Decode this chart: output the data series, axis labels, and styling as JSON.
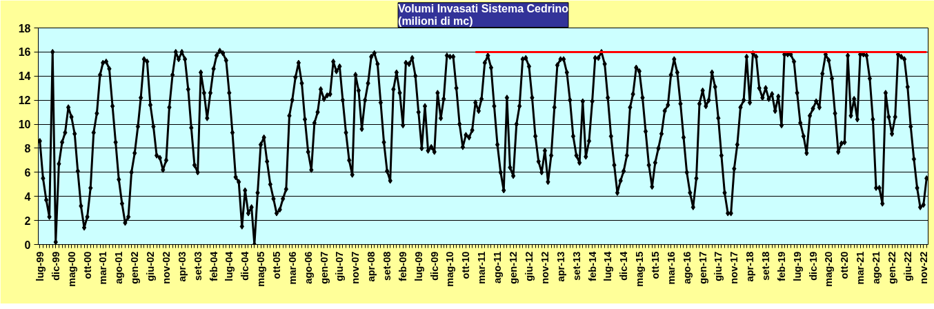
{
  "chart_data": {
    "type": "line",
    "title": "Volumi Invasati Sistema Cedrino\n(milioni  di mc)",
    "xlim": [
      "1999-06-16",
      "2022-12-16"
    ],
    "ylim": [
      0,
      18
    ],
    "yticks": [
      0,
      2,
      4,
      6,
      8,
      10,
      12,
      14,
      16,
      18
    ],
    "xticks": [
      {
        "value": "1999-07",
        "label": "lug-99"
      },
      {
        "value": "1999-12",
        "label": "dic-99"
      },
      {
        "value": "2000-05",
        "label": "mag-00"
      },
      {
        "value": "2000-10",
        "label": "ott-00"
      },
      {
        "value": "2001-03",
        "label": "mar-01"
      },
      {
        "value": "2001-08",
        "label": "ago-01"
      },
      {
        "value": "2002-01",
        "label": "gen-02"
      },
      {
        "value": "2002-06",
        "label": "giu-02"
      },
      {
        "value": "2002-11",
        "label": "nov-02"
      },
      {
        "value": "2003-04",
        "label": "apr-03"
      },
      {
        "value": "2003-09",
        "label": "set-03"
      },
      {
        "value": "2004-02",
        "label": "feb-04"
      },
      {
        "value": "2004-07",
        "label": "lug-04"
      },
      {
        "value": "2004-12",
        "label": "dic-04"
      },
      {
        "value": "2005-05",
        "label": "mag-05"
      },
      {
        "value": "2005-10",
        "label": "ott-05"
      },
      {
        "value": "2006-03",
        "label": "mar-06"
      },
      {
        "value": "2006-08",
        "label": "ago-06"
      },
      {
        "value": "2007-01",
        "label": "gen-07"
      },
      {
        "value": "2007-06",
        "label": "giu-07"
      },
      {
        "value": "2007-11",
        "label": "nov-07"
      },
      {
        "value": "2008-04",
        "label": "apr-08"
      },
      {
        "value": "2008-09",
        "label": "set-08"
      },
      {
        "value": "2009-02",
        "label": "feb-09"
      },
      {
        "value": "2009-07",
        "label": "lug-09"
      },
      {
        "value": "2009-12",
        "label": "dic-09"
      },
      {
        "value": "2010-05",
        "label": "mag-10"
      },
      {
        "value": "2010-10",
        "label": "ott-10"
      },
      {
        "value": "2011-03",
        "label": "mar-11"
      },
      {
        "value": "2011-08",
        "label": "ago-11"
      },
      {
        "value": "2012-01",
        "label": "gen-12"
      },
      {
        "value": "2012-06",
        "label": "giu-12"
      },
      {
        "value": "2012-11",
        "label": "nov-12"
      },
      {
        "value": "2013-04",
        "label": "apr-13"
      },
      {
        "value": "2013-09",
        "label": "set-13"
      },
      {
        "value": "2014-02",
        "label": "feb-14"
      },
      {
        "value": "2014-07",
        "label": "lug-14"
      },
      {
        "value": "2014-12",
        "label": "dic-14"
      },
      {
        "value": "2015-05",
        "label": "mag-15"
      },
      {
        "value": "2015-10",
        "label": "ott-15"
      },
      {
        "value": "2016-03",
        "label": "mar-16"
      },
      {
        "value": "2016-08",
        "label": "ago-16"
      },
      {
        "value": "2017-01",
        "label": "gen-17"
      },
      {
        "value": "2017-06",
        "label": "giu-17"
      },
      {
        "value": "2017-11",
        "label": "nov-17"
      },
      {
        "value": "2018-04",
        "label": "apr-18"
      },
      {
        "value": "2018-09",
        "label": "set-18"
      },
      {
        "value": "2019-02",
        "label": "feb-19"
      },
      {
        "value": "2019-07",
        "label": "lug-19"
      },
      {
        "value": "2019-12",
        "label": "dic-19"
      },
      {
        "value": "2020-05",
        "label": "mag-20"
      },
      {
        "value": "2020-10",
        "label": "ott-20"
      },
      {
        "value": "2021-03",
        "label": "mar-21"
      },
      {
        "value": "2021-08",
        "label": "ago-21"
      },
      {
        "value": "2022-01",
        "label": "gen-22"
      },
      {
        "value": "2022-06",
        "label": "giu-22"
      },
      {
        "value": "2022-11",
        "label": "nov-22"
      }
    ],
    "grid": "y",
    "marker": "diamond",
    "line_style": "solid",
    "series": [
      {
        "color": "#000000",
        "x": [
          "1999-07",
          "1999-08",
          "1999-09",
          "1999-10",
          "1999-11",
          "1999-12",
          "2000-01",
          "2000-02",
          "2000-03",
          "2000-04",
          "2000-05",
          "2000-06",
          "2000-07",
          "2000-08",
          "2000-09",
          "2000-10",
          "2000-11",
          "2000-12",
          "2001-01",
          "2001-02",
          "2001-03",
          "2001-04",
          "2001-05",
          "2001-06",
          "2001-07",
          "2001-08",
          "2001-09",
          "2001-10",
          "2001-11",
          "2001-12",
          "2002-01",
          "2002-02",
          "2002-03",
          "2002-04",
          "2002-05",
          "2002-06",
          "2002-07",
          "2002-08",
          "2002-09",
          "2002-10",
          "2002-11",
          "2002-12",
          "2003-01",
          "2003-02",
          "2003-03",
          "2003-04",
          "2003-05",
          "2003-06",
          "2003-07",
          "2003-08",
          "2003-09",
          "2003-10",
          "2003-11",
          "2003-12",
          "2004-01",
          "2004-02",
          "2004-03",
          "2004-04",
          "2004-05",
          "2004-06",
          "2004-07",
          "2004-08",
          "2004-09",
          "2004-10",
          "2004-11",
          "2004-12",
          "2005-01",
          "2005-02",
          "2005-03",
          "2005-04",
          "2005-05",
          "2005-06",
          "2005-07",
          "2005-08",
          "2005-09",
          "2005-10",
          "2005-11",
          "2005-12",
          "2006-01",
          "2006-02",
          "2006-03",
          "2006-04",
          "2006-05",
          "2006-06",
          "2006-07",
          "2006-08",
          "2006-09",
          "2006-10",
          "2006-11",
          "2006-12",
          "2007-01",
          "2007-02",
          "2007-03",
          "2007-04",
          "2007-05",
          "2007-06",
          "2007-07",
          "2007-08",
          "2007-09",
          "2007-10",
          "2007-11",
          "2007-12",
          "2008-01",
          "2008-02",
          "2008-03",
          "2008-04",
          "2008-05",
          "2008-06",
          "2008-07",
          "2008-08",
          "2008-09",
          "2008-10",
          "2008-11",
          "2008-12",
          "2009-01",
          "2009-02",
          "2009-03",
          "2009-04",
          "2009-05",
          "2009-06",
          "2009-07",
          "2009-08",
          "2009-09",
          "2009-10",
          "2009-11",
          "2009-12",
          "2010-01",
          "2010-02",
          "2010-03",
          "2010-04",
          "2010-05",
          "2010-06",
          "2010-07",
          "2010-08",
          "2010-09",
          "2010-10",
          "2010-11",
          "2010-12",
          "2011-01",
          "2011-02",
          "2011-03",
          "2011-04",
          "2011-05",
          "2011-06",
          "2011-07",
          "2011-08",
          "2011-09",
          "2011-10",
          "2011-11",
          "2011-12",
          "2012-01",
          "2012-02",
          "2012-03",
          "2012-04",
          "2012-05",
          "2012-06",
          "2012-07",
          "2012-08",
          "2012-09",
          "2012-10",
          "2012-11",
          "2012-12",
          "2013-01",
          "2013-02",
          "2013-03",
          "2013-04",
          "2013-05",
          "2013-06",
          "2013-07",
          "2013-08",
          "2013-09",
          "2013-10",
          "2013-11",
          "2013-12",
          "2014-01",
          "2014-02",
          "2014-03",
          "2014-04",
          "2014-05",
          "2014-06",
          "2014-07",
          "2014-08",
          "2014-09",
          "2014-10",
          "2014-11",
          "2014-12",
          "2015-01",
          "2015-02",
          "2015-03",
          "2015-04",
          "2015-05",
          "2015-06",
          "2015-07",
          "2015-08",
          "2015-09",
          "2015-10",
          "2015-11",
          "2015-12",
          "2016-01",
          "2016-02",
          "2016-03",
          "2016-04",
          "2016-05",
          "2016-06",
          "2016-07",
          "2016-08",
          "2016-09",
          "2016-10",
          "2016-11",
          "2016-12",
          "2017-01",
          "2017-02",
          "2017-03",
          "2017-04",
          "2017-05",
          "2017-06",
          "2017-07",
          "2017-08",
          "2017-09",
          "2017-10",
          "2017-11",
          "2017-12",
          "2018-01",
          "2018-02",
          "2018-03",
          "2018-04",
          "2018-05",
          "2018-06",
          "2018-07",
          "2018-08",
          "2018-09",
          "2018-10",
          "2018-11",
          "2018-12",
          "2019-01",
          "2019-02",
          "2019-03",
          "2019-04",
          "2019-05",
          "2019-06",
          "2019-07",
          "2019-08",
          "2019-09",
          "2019-10",
          "2019-11",
          "2019-12",
          "2020-01",
          "2020-02",
          "2020-03",
          "2020-04",
          "2020-05",
          "2020-06",
          "2020-07",
          "2020-08",
          "2020-09",
          "2020-10",
          "2020-11",
          "2020-12",
          "2021-01",
          "2021-02",
          "2021-03",
          "2021-04",
          "2021-05",
          "2021-06",
          "2021-07",
          "2021-08",
          "2021-09",
          "2021-10",
          "2021-11",
          "2021-12",
          "2022-01",
          "2022-02",
          "2022-03",
          "2022-04",
          "2022-05",
          "2022-06",
          "2022-07",
          "2022-08",
          "2022-09",
          "2022-10",
          "2022-11",
          "2022-12"
        ],
        "values": [
          8.6,
          5.5,
          3.7,
          2.3,
          16.0,
          0.2,
          6.7,
          8.5,
          9.3,
          11.4,
          10.6,
          9.2,
          6.1,
          3.2,
          1.4,
          2.3,
          4.7,
          9.3,
          10.9,
          14.1,
          15.1,
          15.2,
          14.6,
          11.5,
          8.5,
          5.4,
          3.4,
          1.8,
          2.3,
          6.0,
          7.6,
          9.8,
          12.2,
          15.4,
          15.2,
          11.6,
          9.8,
          7.4,
          7.2,
          6.2,
          7.0,
          11.4,
          14.1,
          16.0,
          15.4,
          16.0,
          15.4,
          12.9,
          9.7,
          6.6,
          6.0,
          14.3,
          12.6,
          10.5,
          12.6,
          14.6,
          15.7,
          16.1,
          15.9,
          15.3,
          12.6,
          9.3,
          5.6,
          5.2,
          1.5,
          4.5,
          2.6,
          3.1,
          0.0,
          4.3,
          8.3,
          8.9,
          6.9,
          5.0,
          3.8,
          2.6,
          2.9,
          3.8,
          4.6,
          10.7,
          12.0,
          13.9,
          15.1,
          13.4,
          10.4,
          7.7,
          6.2,
          10.1,
          11.0,
          12.9,
          12.1,
          12.4,
          12.5,
          15.2,
          14.4,
          14.8,
          12.0,
          9.3,
          7.0,
          5.8,
          14.1,
          12.8,
          9.6,
          12.0,
          13.4,
          15.6,
          15.9,
          15.0,
          11.8,
          8.5,
          6.1,
          5.3,
          12.9,
          14.3,
          12.6,
          9.9,
          15.1,
          15.0,
          15.5,
          14.0,
          11.0,
          8.0,
          11.5,
          7.8,
          8.1,
          7.7,
          12.6,
          10.5,
          12.1,
          15.7,
          15.6,
          15.6,
          13.0,
          10.0,
          8.1,
          9.1,
          8.9,
          9.5,
          11.8,
          11.1,
          12.1,
          15.1,
          15.7,
          14.7,
          11.5,
          8.3,
          6.0,
          4.5,
          12.2,
          6.4,
          5.7,
          10.0,
          11.5,
          15.4,
          15.5,
          14.8,
          12.2,
          9.0,
          6.9,
          6.0,
          7.8,
          5.2,
          7.4,
          11.4,
          14.9,
          15.4,
          15.4,
          14.3,
          12.0,
          9.0,
          7.4,
          6.8,
          11.9,
          7.3,
          8.6,
          11.9,
          15.5,
          15.5,
          16.0,
          15.0,
          12.2,
          9.0,
          6.6,
          4.3,
          5.3,
          6.1,
          7.4,
          11.4,
          12.5,
          14.7,
          14.4,
          12.2,
          9.4,
          6.6,
          4.8,
          6.8,
          8.0,
          9.2,
          11.1,
          11.6,
          14.1,
          15.4,
          14.3,
          11.7,
          8.9,
          6.0,
          4.3,
          3.1,
          5.5,
          11.7,
          12.8,
          11.5,
          12.0,
          14.3,
          13.1,
          10.5,
          7.4,
          4.3,
          2.6,
          2.6,
          6.3,
          8.3,
          11.4,
          12.0,
          15.6,
          11.8,
          15.9,
          15.6,
          13.0,
          12.2,
          13.0,
          12.1,
          12.5,
          11.1,
          12.3,
          9.9,
          15.8,
          15.8,
          15.8,
          15.2,
          12.6,
          10.1,
          9.0,
          7.6,
          10.7,
          11.3,
          11.9,
          11.4,
          14.2,
          15.8,
          15.3,
          13.8,
          10.9,
          7.7,
          8.4,
          8.5,
          15.7,
          10.7,
          12.1,
          10.4,
          15.8,
          15.8,
          15.7,
          13.8,
          10.4,
          4.7,
          4.7,
          3.4,
          12.6,
          10.6,
          9.2,
          10.6,
          15.8,
          15.6,
          15.4,
          13.1,
          9.8,
          7.1,
          4.7,
          3.1,
          3.3,
          5.5
        ]
      },
      {
        "type": "line",
        "color": "#ff0000",
        "marker": "none",
        "x": [
          "2011-01",
          "2022-12"
        ],
        "values": [
          16,
          16
        ]
      }
    ]
  }
}
